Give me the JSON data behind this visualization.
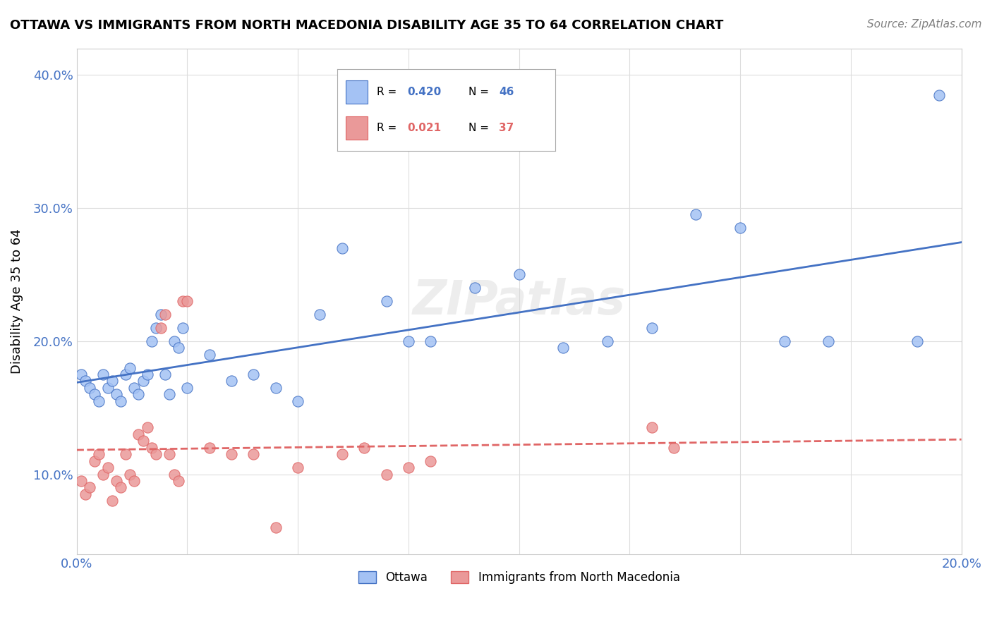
{
  "title": "OTTAWA VS IMMIGRANTS FROM NORTH MACEDONIA DISABILITY AGE 35 TO 64 CORRELATION CHART",
  "source": "Source: ZipAtlas.com",
  "xlabel": "",
  "ylabel": "Disability Age 35 to 64",
  "xlim": [
    0.0,
    0.2
  ],
  "ylim": [
    0.04,
    0.42
  ],
  "xticks": [
    0.0,
    0.025,
    0.05,
    0.075,
    0.1,
    0.125,
    0.15,
    0.175,
    0.2
  ],
  "yticks": [
    0.1,
    0.2,
    0.3,
    0.4
  ],
  "ytick_labels": [
    "10.0%",
    "20.0%",
    "30.0%",
    "40.0%"
  ],
  "xtick_labels": [
    "0.0%",
    "",
    "",
    "",
    "",
    "",
    "",
    "",
    "20.0%"
  ],
  "legend_entries": [
    {
      "label": "Ottawa",
      "R": 0.42,
      "N": 46,
      "color": "#6fa8dc"
    },
    {
      "label": "Immigrants from North Macedonia",
      "R": 0.021,
      "N": 37,
      "color": "#ea9999"
    }
  ],
  "ottawa_x": [
    0.001,
    0.002,
    0.003,
    0.004,
    0.005,
    0.006,
    0.007,
    0.008,
    0.009,
    0.01,
    0.011,
    0.012,
    0.013,
    0.014,
    0.015,
    0.016,
    0.017,
    0.018,
    0.019,
    0.02,
    0.021,
    0.022,
    0.023,
    0.024,
    0.025,
    0.03,
    0.035,
    0.04,
    0.045,
    0.05,
    0.055,
    0.06,
    0.07,
    0.075,
    0.08,
    0.09,
    0.1,
    0.11,
    0.12,
    0.13,
    0.14,
    0.15,
    0.16,
    0.17,
    0.19,
    0.195
  ],
  "ottawa_y": [
    0.175,
    0.17,
    0.165,
    0.16,
    0.155,
    0.175,
    0.165,
    0.17,
    0.16,
    0.155,
    0.175,
    0.18,
    0.165,
    0.16,
    0.17,
    0.175,
    0.2,
    0.21,
    0.22,
    0.175,
    0.16,
    0.2,
    0.195,
    0.21,
    0.165,
    0.19,
    0.17,
    0.175,
    0.165,
    0.155,
    0.22,
    0.27,
    0.23,
    0.2,
    0.2,
    0.24,
    0.25,
    0.195,
    0.2,
    0.21,
    0.295,
    0.285,
    0.2,
    0.2,
    0.2,
    0.385
  ],
  "immig_x": [
    0.001,
    0.002,
    0.003,
    0.004,
    0.005,
    0.006,
    0.007,
    0.008,
    0.009,
    0.01,
    0.011,
    0.012,
    0.013,
    0.014,
    0.015,
    0.016,
    0.017,
    0.018,
    0.019,
    0.02,
    0.021,
    0.022,
    0.023,
    0.024,
    0.025,
    0.03,
    0.035,
    0.04,
    0.045,
    0.05,
    0.06,
    0.065,
    0.07,
    0.075,
    0.08,
    0.13,
    0.135
  ],
  "immig_y": [
    0.095,
    0.085,
    0.09,
    0.11,
    0.115,
    0.1,
    0.105,
    0.08,
    0.095,
    0.09,
    0.115,
    0.1,
    0.095,
    0.13,
    0.125,
    0.135,
    0.12,
    0.115,
    0.21,
    0.22,
    0.115,
    0.1,
    0.095,
    0.23,
    0.23,
    0.12,
    0.115,
    0.115,
    0.06,
    0.105,
    0.115,
    0.12,
    0.1,
    0.105,
    0.11,
    0.135,
    0.12
  ],
  "blue_color": "#4472c4",
  "pink_color": "#e06666",
  "blue_fill": "#a4c2f4",
  "pink_fill": "#ea9999",
  "background_color": "#ffffff",
  "grid_color": "#dddddd",
  "watermark": "ZIPatlas"
}
